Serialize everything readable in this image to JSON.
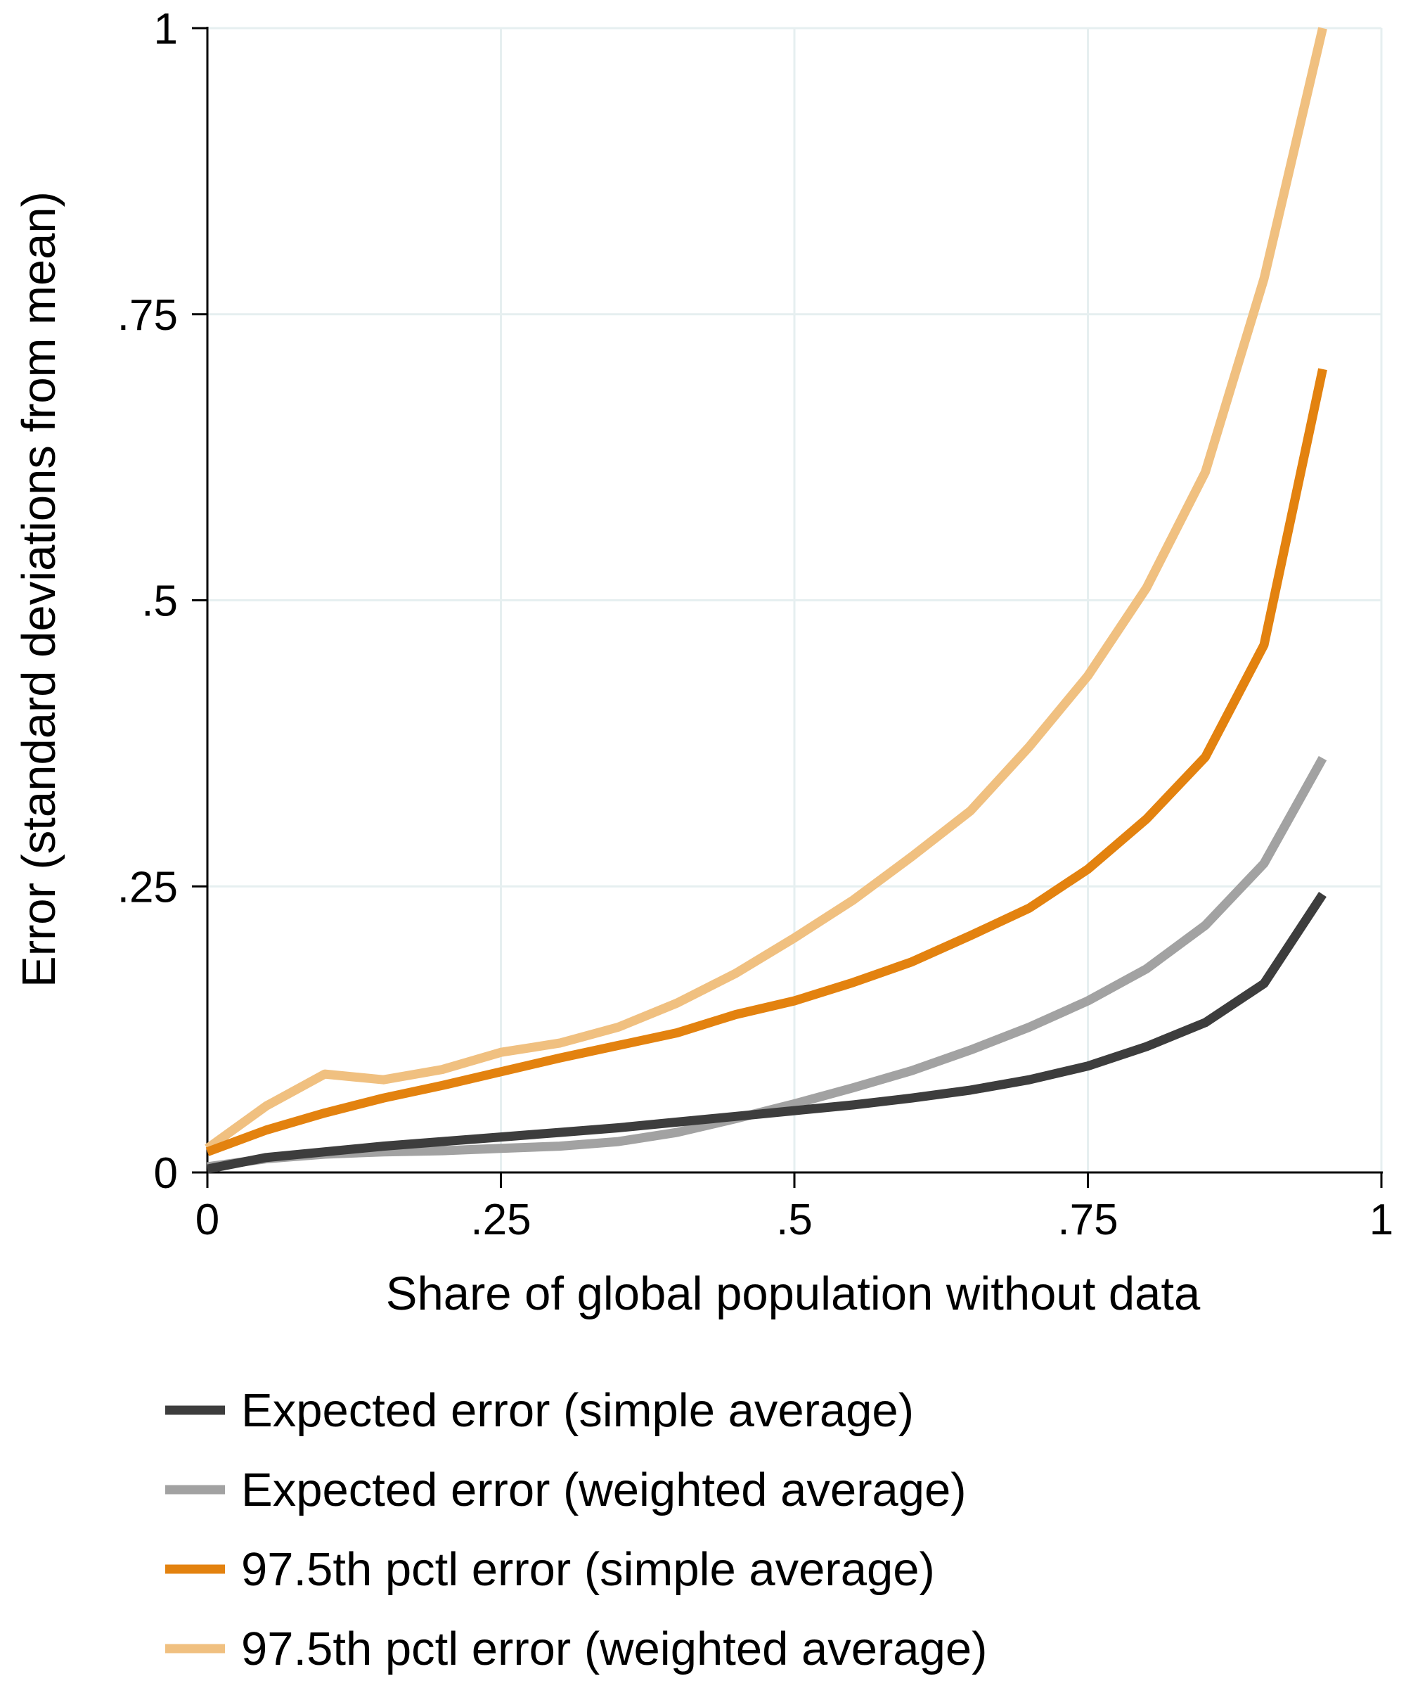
{
  "chart_data": {
    "type": "line",
    "title": "",
    "xlabel": "Share of global population without data",
    "ylabel": "Error (standard deviations from mean)",
    "xlim": [
      0,
      1
    ],
    "ylim": [
      0,
      1
    ],
    "x_ticks": [
      0,
      0.25,
      0.5,
      0.75,
      1
    ],
    "x_tick_labels": [
      "0",
      ".25",
      ".5",
      ".75",
      "1"
    ],
    "y_ticks": [
      0,
      0.25,
      0.5,
      0.75,
      1
    ],
    "y_tick_labels": [
      "0",
      ".25",
      ".5",
      ".75",
      "1"
    ],
    "grid": true,
    "legend_position": "bottom",
    "x": [
      0,
      0.05,
      0.1,
      0.15,
      0.2,
      0.25,
      0.3,
      0.35,
      0.4,
      0.45,
      0.5,
      0.55,
      0.6,
      0.65,
      0.7,
      0.75,
      0.8,
      0.85,
      0.9,
      0.95
    ],
    "series": [
      {
        "name": "Expected error (simple average)",
        "color": "#3d3d3d",
        "values": [
          0.003,
          0.013,
          0.018,
          0.023,
          0.027,
          0.031,
          0.035,
          0.039,
          0.044,
          0.049,
          0.054,
          0.059,
          0.065,
          0.072,
          0.081,
          0.093,
          0.11,
          0.131,
          0.165,
          0.243
        ]
      },
      {
        "name": "Expected error (weighted average)",
        "color": "#a2a2a2",
        "values": [
          0.005,
          0.012,
          0.016,
          0.018,
          0.019,
          0.021,
          0.023,
          0.027,
          0.035,
          0.047,
          0.06,
          0.074,
          0.089,
          0.107,
          0.127,
          0.15,
          0.178,
          0.216,
          0.27,
          0.362
        ]
      },
      {
        "name": "97.5th pctl error (simple average)",
        "color": "#e3820f",
        "values": [
          0.018,
          0.037,
          0.052,
          0.065,
          0.076,
          0.088,
          0.1,
          0.111,
          0.122,
          0.138,
          0.15,
          0.166,
          0.184,
          0.207,
          0.231,
          0.265,
          0.309,
          0.363,
          0.461,
          0.702
        ]
      },
      {
        "name": "97.5th pctl error (weighted average)",
        "color": "#f0c080",
        "values": [
          0.021,
          0.058,
          0.086,
          0.081,
          0.09,
          0.105,
          0.113,
          0.127,
          0.148,
          0.174,
          0.205,
          0.238,
          0.276,
          0.316,
          0.372,
          0.434,
          0.511,
          0.612,
          0.781,
          1.0
        ]
      }
    ]
  }
}
